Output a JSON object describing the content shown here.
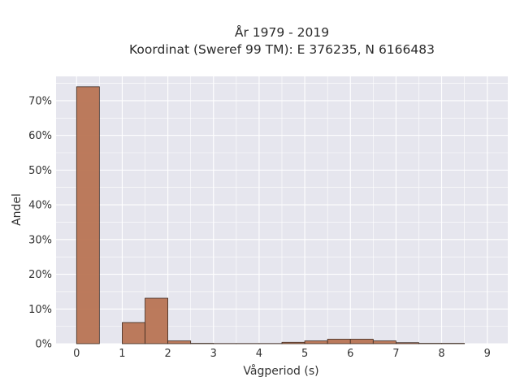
{
  "chart_data": {
    "type": "bar",
    "title_line1": "År 1979 - 2019",
    "title_line2": "Koordinat (Sweref 99 TM): E 376235, N 6166483",
    "xlabel": "Vågperiod (s)",
    "ylabel": "Andel",
    "xlim": [
      -0.45,
      9.45
    ],
    "ylim": [
      0,
      77
    ],
    "x_ticks": [
      "0",
      "1",
      "2",
      "3",
      "4",
      "5",
      "6",
      "7",
      "8",
      "9"
    ],
    "y_ticks": [
      "0%",
      "10%",
      "20%",
      "30%",
      "40%",
      "50%",
      "60%",
      "70%"
    ],
    "bin_width": 0.5,
    "bins": [
      {
        "x0": 0.0,
        "value": 74.0
      },
      {
        "x0": 0.5,
        "value": 0.0
      },
      {
        "x0": 1.0,
        "value": 6.1
      },
      {
        "x0": 1.5,
        "value": 13.1
      },
      {
        "x0": 2.0,
        "value": 0.8
      },
      {
        "x0": 2.5,
        "value": 0.1
      },
      {
        "x0": 3.0,
        "value": 0.05
      },
      {
        "x0": 3.5,
        "value": 0.05
      },
      {
        "x0": 4.0,
        "value": 0.05
      },
      {
        "x0": 4.5,
        "value": 0.4
      },
      {
        "x0": 5.0,
        "value": 0.8
      },
      {
        "x0": 5.5,
        "value": 1.3
      },
      {
        "x0": 6.0,
        "value": 1.3
      },
      {
        "x0": 6.5,
        "value": 0.8
      },
      {
        "x0": 7.0,
        "value": 0.3
      },
      {
        "x0": 7.5,
        "value": 0.1
      },
      {
        "x0": 8.0,
        "value": 0.1
      }
    ],
    "grid": true,
    "colors": {
      "bar_fill": "#b87453",
      "bar_stroke": "#3d2b22",
      "plot_bg": "#e6e6ee",
      "grid": "#ffffff"
    }
  }
}
